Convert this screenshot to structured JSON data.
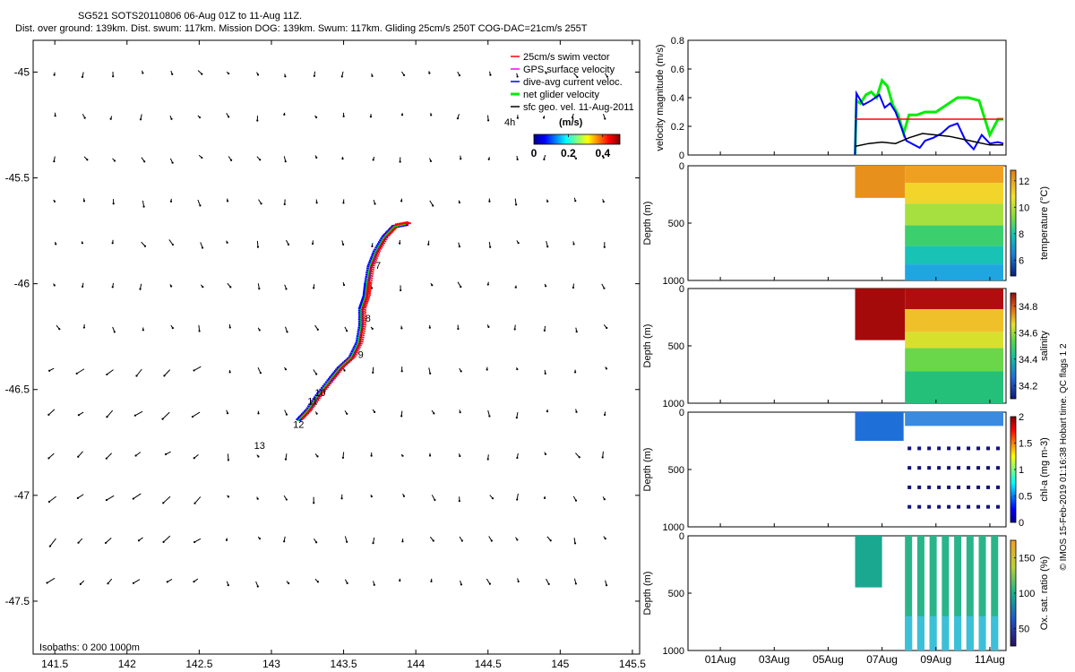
{
  "header": {
    "line1": "SG521 SOTS20110806 06-Aug 01Z to 11-Aug 11Z.",
    "line2": "Dist. over ground: 139km. Dist. swum: 117km. Mission DOG: 139km. Swum: 117km. Gliding 25cm/s 250T COG-DAC=21cm/s 255T"
  },
  "footer": {
    "credit": "© IMOS 15-Feb-2019 01:16:38 Hobart time. QC flags 1  2"
  },
  "colors": {
    "swim": "#ff0000",
    "gps": "#ff00ff",
    "dac": "#0000ff",
    "net": "#00ee00",
    "geo": "#000000"
  },
  "chart_data": [
    {
      "type": "scatter",
      "name": "map",
      "xlim": [
        141.35,
        145.55
      ],
      "ylim": [
        -47.75,
        -44.85
      ],
      "xticks": [
        141.5,
        142,
        142.5,
        143,
        143.5,
        144,
        144.5,
        145,
        145.5
      ],
      "xtick_labels": [
        "141.5",
        "142",
        "142.5",
        "143",
        "143.5",
        "144",
        "144.5",
        "145",
        "145.5"
      ],
      "yticks": [
        -45,
        -45.5,
        -46,
        -46.5,
        -47,
        -47.5
      ],
      "ytick_labels": [
        "-45",
        "-45.5",
        "-46",
        "-46.5",
        "-47",
        "-47.5"
      ],
      "legend": [
        {
          "label": "25cm/s swim vector",
          "key": "swim"
        },
        {
          "label": "GPS surface velocity",
          "key": "gps"
        },
        {
          "label": "dive-avg current veloc.",
          "key": "dac"
        },
        {
          "label": "net glider velocity",
          "key": "net"
        },
        {
          "label": "sfc geo. vel. 11-Aug-2011",
          "key": "geo"
        }
      ],
      "legend_position": "top-right",
      "colorbar": {
        "title": "(m/s)",
        "tick_labels": [
          "0",
          "0.2",
          "0.4"
        ],
        "range": [
          0,
          0.5
        ]
      },
      "extra_label": "4h",
      "isobath_label": "Isobaths: 0   200   1000m",
      "track": [
        [
          143.93,
          -45.72
        ],
        [
          143.85,
          -45.73
        ],
        [
          143.78,
          -45.78
        ],
        [
          143.72,
          -45.85
        ],
        [
          143.68,
          -45.92
        ],
        [
          143.66,
          -46.0
        ],
        [
          143.65,
          -46.06
        ],
        [
          143.62,
          -46.12
        ],
        [
          143.62,
          -46.2
        ],
        [
          143.6,
          -46.28
        ],
        [
          143.55,
          -46.35
        ],
        [
          143.47,
          -46.4
        ],
        [
          143.4,
          -46.46
        ],
        [
          143.32,
          -46.53
        ],
        [
          143.25,
          -46.6
        ],
        [
          143.18,
          -46.65
        ]
      ],
      "day_labels": [
        {
          "text": "7",
          "lon": 143.72,
          "lat": -45.93
        },
        {
          "text": "8",
          "lon": 143.65,
          "lat": -46.18
        },
        {
          "text": "9",
          "lon": 143.6,
          "lat": -46.35
        },
        {
          "text": "10",
          "lon": 143.3,
          "lat": -46.53
        },
        {
          "text": "11",
          "lon": 143.25,
          "lat": -46.57
        },
        {
          "text": "12",
          "lon": 143.15,
          "lat": -46.68
        },
        {
          "text": "13",
          "lon": 142.88,
          "lat": -46.78
        }
      ]
    },
    {
      "type": "line",
      "name": "velocity",
      "ylabel": "velocity magnitude (m/s)",
      "ylim": [
        0,
        0.8
      ],
      "yticks": [
        0,
        0.2,
        0.4,
        0.6,
        0.8
      ],
      "ytick_labels": [
        "0",
        "0.2",
        "0.4",
        "0.6",
        "0.8"
      ],
      "series": [
        {
          "name": "net glider velocity",
          "key": "net",
          "x": [
            6.0,
            6.05,
            6.2,
            6.4,
            6.6,
            6.8,
            7.0,
            7.2,
            7.4,
            7.6,
            7.8,
            8.0,
            8.3,
            8.6,
            9.0,
            9.4,
            9.8,
            10.2,
            10.6,
            11.0,
            11.3,
            11.5
          ],
          "values": [
            0.0,
            0.38,
            0.36,
            0.42,
            0.44,
            0.4,
            0.52,
            0.48,
            0.35,
            0.28,
            0.15,
            0.28,
            0.28,
            0.3,
            0.3,
            0.35,
            0.4,
            0.4,
            0.38,
            0.14,
            0.25,
            0.25
          ]
        },
        {
          "name": "dive-avg current veloc.",
          "key": "dac",
          "x": [
            6.0,
            6.05,
            6.3,
            6.6,
            6.9,
            7.1,
            7.3,
            7.5,
            7.7,
            7.9,
            8.1,
            8.4,
            8.6,
            8.9,
            9.2,
            9.5,
            9.8,
            10.1,
            10.4,
            10.7,
            11.0,
            11.3,
            11.5
          ],
          "values": [
            0.0,
            0.43,
            0.35,
            0.38,
            0.42,
            0.33,
            0.36,
            0.3,
            0.2,
            0.1,
            0.08,
            0.05,
            0.1,
            0.12,
            0.15,
            0.2,
            0.22,
            0.1,
            0.04,
            0.14,
            0.08,
            0.09,
            0.08
          ]
        },
        {
          "name": "25cm/s swim vector",
          "key": "swim",
          "x": [
            6.0,
            11.5
          ],
          "values": [
            0.25,
            0.25
          ]
        },
        {
          "name": "sfc geo. vel.",
          "key": "geo",
          "x": [
            6.0,
            6.5,
            7.0,
            7.5,
            8.0,
            8.5,
            9.0,
            9.5,
            10.0,
            10.5,
            11.0,
            11.5
          ],
          "values": [
            0.06,
            0.08,
            0.09,
            0.08,
            0.12,
            0.15,
            0.14,
            0.13,
            0.11,
            0.09,
            0.07,
            0.07
          ]
        }
      ]
    },
    {
      "type": "heatmap",
      "name": "temperature",
      "ylabel": "Depth (m)",
      "colorbar_label": "temperature (°C)",
      "ylim": [
        1000,
        0
      ],
      "yticks": [
        0,
        500,
        1000
      ],
      "ytick_labels": [
        "0",
        "500",
        "1000"
      ],
      "cticks": [
        6,
        8,
        10,
        12
      ],
      "ctick_labels": [
        "6",
        "8",
        "10",
        "12"
      ],
      "crange": [
        4.8,
        12.8
      ]
    },
    {
      "type": "heatmap",
      "name": "salinity",
      "ylabel": "Depth (m)",
      "colorbar_label": "salinity",
      "ylim": [
        1000,
        0
      ],
      "yticks": [
        0,
        500,
        1000
      ],
      "ytick_labels": [
        "0",
        "500",
        "1000"
      ],
      "cticks": [
        34.2,
        34.4,
        34.6,
        34.8
      ],
      "ctick_labels": [
        "34.2",
        "34.4",
        "34.6",
        "34.8"
      ],
      "crange": [
        34.1,
        34.9
      ]
    },
    {
      "type": "heatmap",
      "name": "chla",
      "ylabel": "Depth (m)",
      "colorbar_label": "chl-a (mg m-3)",
      "ylim": [
        1000,
        0
      ],
      "yticks": [
        0,
        500,
        1000
      ],
      "ytick_labels": [
        "0",
        "500",
        "1000"
      ],
      "cticks": [
        0,
        0.5,
        1,
        1.5,
        2
      ],
      "ctick_labels": [
        "0",
        "0.5",
        "1",
        "1.5",
        "2"
      ],
      "crange": [
        0,
        2
      ]
    },
    {
      "type": "heatmap",
      "name": "oxygen",
      "ylabel": "Depth (m)",
      "colorbar_label": "Ox. sat. ratio (%)",
      "ylim": [
        1000,
        0
      ],
      "yticks": [
        0,
        500,
        1000
      ],
      "ytick_labels": [
        "0",
        "500",
        "1000"
      ],
      "cticks": [
        50,
        100,
        150
      ],
      "ctick_labels": [
        "50",
        "100",
        "150"
      ],
      "crange": [
        25,
        175
      ],
      "xticks": [
        1,
        3,
        5,
        7,
        9,
        11
      ],
      "xtick_labels": [
        "01Aug",
        "03Aug",
        "05Aug",
        "07Aug",
        "09Aug",
        "11Aug"
      ],
      "xlim": [
        -0.2,
        11.6
      ]
    }
  ]
}
